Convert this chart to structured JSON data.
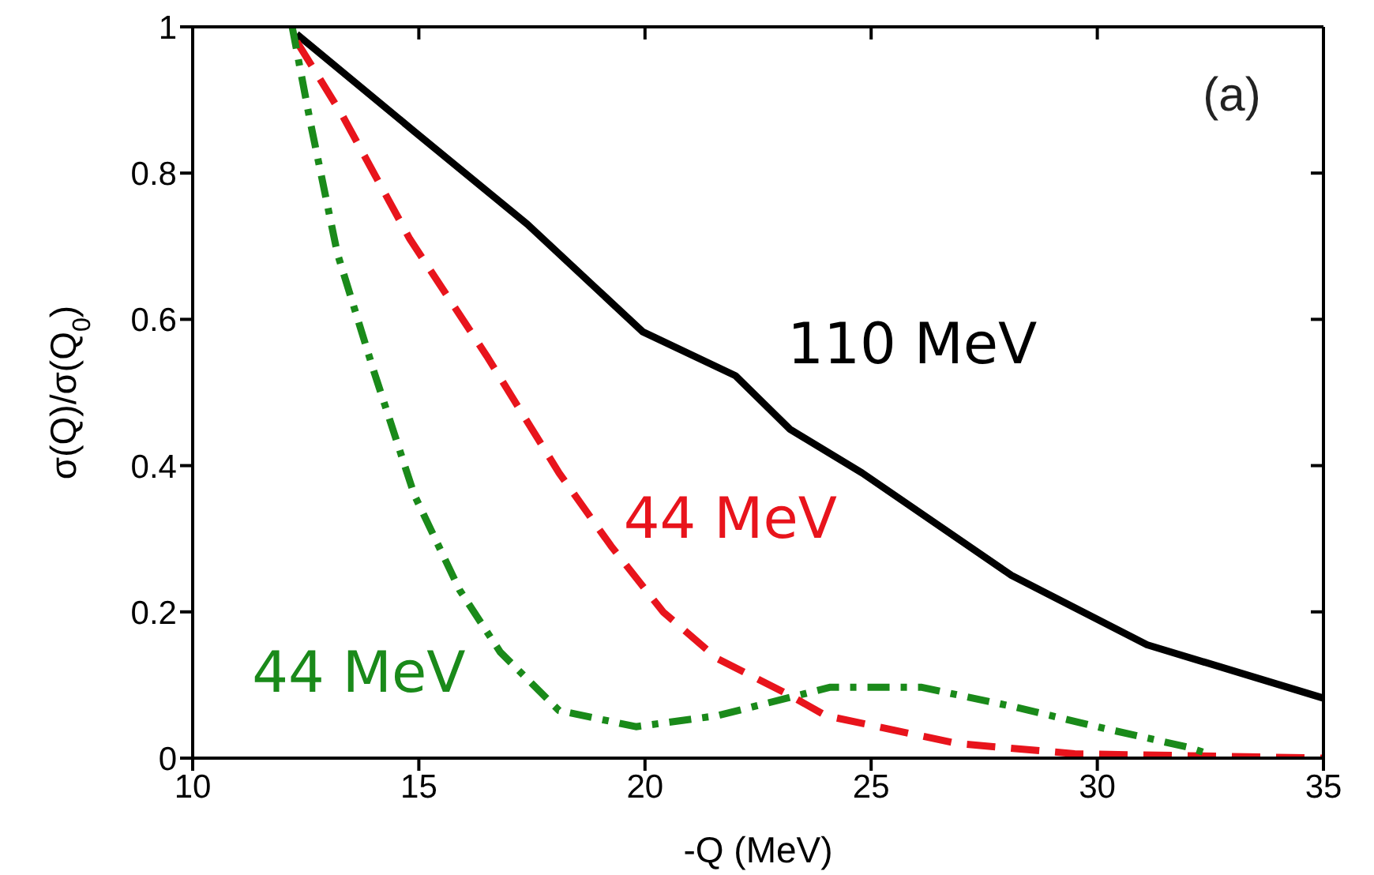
{
  "chart_data": {
    "type": "line",
    "xlabel": "-Q (MeV)",
    "ylabel": "σ(Q)/σ(Q$_{0}$)",
    "xlim": [
      10,
      35
    ],
    "ylim": [
      0,
      1
    ],
    "xticks": [
      10,
      15,
      20,
      25,
      30,
      35
    ],
    "yticks": [
      0,
      0.2,
      0.4,
      0.6,
      0.8,
      1
    ],
    "grid": false,
    "legend": false,
    "marker": "none",
    "annotations": [
      "(a)"
    ],
    "series": [
      {
        "name": "110 MeV",
        "color": "#000000",
        "line_style": "solid",
        "x": [
          12.3,
          14.9,
          17.4,
          19.95,
          22.0,
          23.2,
          24.8,
          28.1,
          31.1,
          35
        ],
        "values": [
          0.99,
          0.857,
          0.73,
          0.583,
          0.523,
          0.45,
          0.39,
          0.25,
          0.155,
          0.082
        ]
      },
      {
        "name": "44 MeV",
        "color": "#e8141c",
        "line_style": "dashed",
        "x": [
          12.3,
          13.3,
          14.8,
          16.5,
          18.1,
          19.25,
          20.4,
          21.6,
          23.2,
          24,
          26.9,
          29.5,
          35
        ],
        "values": [
          0.98,
          0.88,
          0.71,
          0.55,
          0.39,
          0.29,
          0.2,
          0.136,
          0.086,
          0.058,
          0.02,
          0.006,
          0
        ]
      },
      {
        "name": "44 MeV",
        "color": "#1a8a1a",
        "line_style": "dashdot",
        "x": [
          12.2,
          12.6,
          13.2,
          14.0,
          14.9,
          15.9,
          16.8,
          18.1,
          19.8,
          21.6,
          24.1,
          26.1,
          28.1,
          30.2,
          32.0,
          32.5
        ],
        "values": [
          1,
          0.87,
          0.69,
          0.53,
          0.36,
          0.23,
          0.145,
          0.065,
          0.043,
          0.058,
          0.097,
          0.097,
          0.071,
          0.04,
          0.015,
          0.005
        ]
      }
    ]
  }
}
